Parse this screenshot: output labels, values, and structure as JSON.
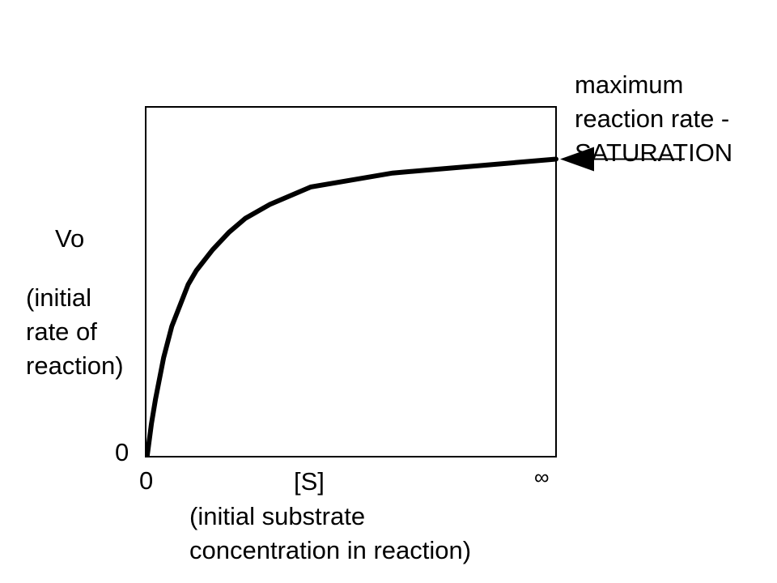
{
  "chart_data": {
    "type": "line",
    "title": "",
    "ylabel": "Vo",
    "ylabel_note": [
      "(initial",
      "rate of",
      "reaction)"
    ],
    "xlabel": "[S]",
    "xlabel_note": [
      "(initial substrate",
      "concentration in reaction)"
    ],
    "x_ticks": [
      "0",
      "∞"
    ],
    "y_ticks": [
      "0"
    ],
    "ylim": [
      0,
      1
    ],
    "xlim": [
      0,
      50
    ],
    "series": [
      {
        "x": [
          0,
          0.5,
          1,
          2,
          3,
          4,
          5,
          6,
          8,
          10,
          12,
          15,
          18,
          20,
          25,
          30,
          35,
          40,
          45,
          50
        ],
        "y": [
          0,
          0.09,
          0.16,
          0.28,
          0.37,
          0.43,
          0.49,
          0.53,
          0.59,
          0.64,
          0.68,
          0.72,
          0.75,
          0.77,
          0.79,
          0.81,
          0.82,
          0.83,
          0.84,
          0.85
        ]
      }
    ],
    "annotation": {
      "lines": [
        "maximum",
        "reaction rate -",
        "SATURATION"
      ],
      "points_to_y": 0.85
    },
    "grid": false
  }
}
